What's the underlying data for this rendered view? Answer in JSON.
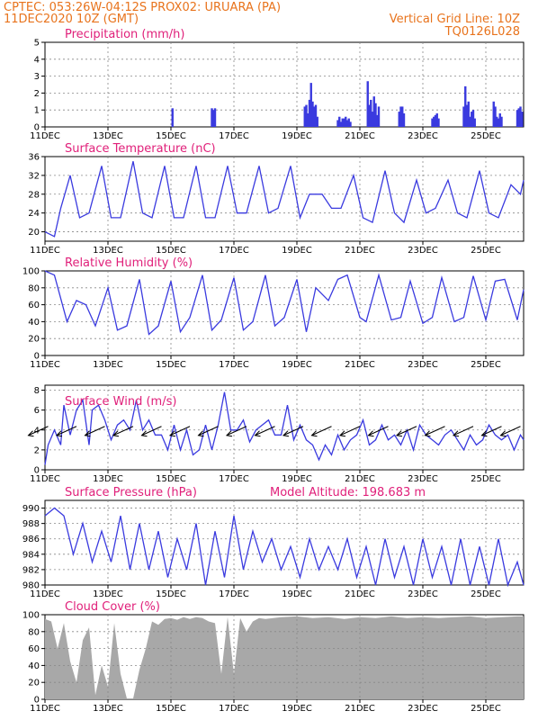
{
  "header": {
    "line1": "CPTEC:   053:26W-04:12S   PROX02: URUARA (PA)",
    "line2": "11DEC2020 10Z (GMT)",
    "grid_note": "Vertical Grid Line: 10Z",
    "code": "TQ0126L028"
  },
  "x_axis": {
    "tick_labels": [
      "11DEC",
      "13DEC",
      "15DEC",
      "17DEC",
      "19DEC",
      "21DEC",
      "23DEC",
      "25DEC"
    ],
    "tick_days": [
      0,
      2,
      4,
      6,
      8,
      10,
      12,
      14
    ],
    "range_days": [
      0,
      15.2
    ]
  },
  "colors": {
    "series": "#3a3adf",
    "cloud": "#a8a8a8",
    "header": "#e8731c",
    "title": "#e0207a"
  },
  "chart_data": [
    {
      "type": "bar",
      "title": "Precipitation  (mm/h)",
      "ylim": [
        0,
        5
      ],
      "yticks": [
        0,
        1,
        2,
        3,
        4,
        5
      ],
      "x_days": [
        4.05,
        5.3,
        5.35,
        5.4,
        8.25,
        8.3,
        8.35,
        8.4,
        8.45,
        8.5,
        8.55,
        8.6,
        8.65,
        9.3,
        9.35,
        9.4,
        9.45,
        9.5,
        9.55,
        9.6,
        9.65,
        9.7,
        10.25,
        10.3,
        10.35,
        10.4,
        10.45,
        10.5,
        10.55,
        10.6,
        11.25,
        11.3,
        11.35,
        11.4,
        12.3,
        12.35,
        12.4,
        12.45,
        12.5,
        13.3,
        13.35,
        13.4,
        13.45,
        13.5,
        13.55,
        13.6,
        13.65,
        14.25,
        14.3,
        14.35,
        14.4,
        14.45,
        14.5,
        15.0,
        15.05,
        15.1,
        15.15
      ],
      "values": [
        1.1,
        1.1,
        1.0,
        1.1,
        1.2,
        1.3,
        0.8,
        1.6,
        2.6,
        1.5,
        1.2,
        1.3,
        0.6,
        0.4,
        0.6,
        0.3,
        0.5,
        0.5,
        0.6,
        0.4,
        0.5,
        0.3,
        2.7,
        1.3,
        1.6,
        0.9,
        1.8,
        1.4,
        0.7,
        1.2,
        0.9,
        1.2,
        1.2,
        0.8,
        0.5,
        0.6,
        0.7,
        0.8,
        0.5,
        1.2,
        2.4,
        1.3,
        1.5,
        0.6,
        0.9,
        1.0,
        0.5,
        1.5,
        1.2,
        0.6,
        0.5,
        0.8,
        0.6,
        1.0,
        1.1,
        1.2,
        0.9
      ]
    },
    {
      "type": "line",
      "title": "Surface Temperature (nC)",
      "ylim": [
        18,
        36
      ],
      "yticks": [
        20,
        24,
        28,
        32,
        36
      ],
      "series": [
        {
          "x_days": [
            0,
            0.3,
            0.5,
            0.8,
            1.1,
            1.4,
            1.8,
            2.1,
            2.4,
            2.8,
            3.1,
            3.4,
            3.8,
            4.1,
            4.4,
            4.8,
            5.1,
            5.4,
            5.8,
            6.1,
            6.4,
            6.8,
            7.1,
            7.4,
            7.8,
            8.1,
            8.4,
            8.8,
            9.1,
            9.4,
            9.8,
            10.1,
            10.4,
            10.8,
            11.1,
            11.4,
            11.8,
            12.1,
            12.4,
            12.8,
            13.1,
            13.4,
            13.8,
            14.1,
            14.4,
            14.8,
            15.1,
            15.2
          ],
          "values": [
            20,
            19,
            25,
            32,
            23,
            24,
            34,
            23,
            23,
            35,
            24,
            23,
            34,
            23,
            23,
            34,
            23,
            23,
            34,
            24,
            24,
            34,
            24,
            25,
            34,
            23,
            28,
            28,
            25,
            25,
            32,
            23,
            22,
            33,
            24,
            22,
            31,
            24,
            25,
            31,
            24,
            23,
            33,
            24,
            23,
            30,
            28,
            31
          ]
        }
      ]
    },
    {
      "type": "line",
      "title": "Relative Humidity  (%)",
      "ylim": [
        0,
        100
      ],
      "yticks": [
        0,
        20,
        40,
        60,
        80,
        100
      ],
      "series": [
        {
          "x_days": [
            0,
            0.3,
            0.7,
            1.0,
            1.3,
            1.6,
            2.0,
            2.3,
            2.6,
            3.0,
            3.3,
            3.6,
            4.0,
            4.3,
            4.6,
            5.0,
            5.3,
            5.6,
            6.0,
            6.3,
            6.6,
            7.0,
            7.3,
            7.6,
            8.0,
            8.3,
            8.6,
            9.0,
            9.3,
            9.6,
            10.0,
            10.2,
            10.6,
            11.0,
            11.3,
            11.6,
            12.0,
            12.3,
            12.6,
            13.0,
            13.3,
            13.6,
            14.0,
            14.3,
            14.6,
            15.0,
            15.2
          ],
          "values": [
            100,
            95,
            40,
            65,
            60,
            35,
            80,
            30,
            35,
            90,
            25,
            35,
            88,
            28,
            45,
            95,
            30,
            42,
            92,
            30,
            40,
            95,
            35,
            45,
            90,
            28,
            80,
            65,
            90,
            95,
            45,
            40,
            95,
            42,
            45,
            88,
            38,
            45,
            92,
            40,
            45,
            94,
            42,
            88,
            90,
            42,
            78
          ]
        }
      ]
    },
    {
      "type": "line",
      "title": "Surface Wind  (m/s)",
      "ylim": [
        0,
        8.5
      ],
      "yticks": [
        0,
        2,
        4,
        6,
        8
      ],
      "series": [
        {
          "x_days": [
            0,
            0.1,
            0.3,
            0.5,
            0.6,
            0.8,
            1.0,
            1.2,
            1.4,
            1.5,
            1.7,
            1.9,
            2.1,
            2.3,
            2.5,
            2.7,
            2.9,
            3.1,
            3.3,
            3.5,
            3.7,
            3.9,
            4.1,
            4.3,
            4.5,
            4.7,
            4.9,
            5.1,
            5.3,
            5.5,
            5.7,
            5.9,
            6.1,
            6.3,
            6.5,
            6.7,
            6.9,
            7.1,
            7.3,
            7.5,
            7.7,
            7.9,
            8.1,
            8.3,
            8.5,
            8.7,
            8.9,
            9.1,
            9.3,
            9.5,
            9.7,
            9.9,
            10.1,
            10.3,
            10.5,
            10.7,
            10.9,
            11.1,
            11.3,
            11.5,
            11.7,
            11.9,
            12.1,
            12.3,
            12.5,
            12.7,
            12.9,
            13.1,
            13.3,
            13.5,
            13.7,
            13.9,
            14.1,
            14.3,
            14.5,
            14.7,
            14.9,
            15.1,
            15.2
          ],
          "values": [
            0.5,
            2.5,
            4.0,
            2.5,
            6.5,
            3.5,
            6.0,
            7.0,
            2.5,
            6.0,
            6.5,
            5.0,
            3.0,
            4.5,
            5.0,
            4.0,
            7.0,
            4.0,
            5.0,
            3.5,
            3.5,
            2.0,
            4.5,
            2.0,
            4.0,
            1.5,
            2.0,
            4.5,
            2.0,
            4.5,
            7.8,
            4.0,
            4.0,
            5.0,
            2.8,
            4.0,
            4.5,
            5.0,
            3.5,
            3.5,
            6.5,
            3.0,
            4.5,
            3.0,
            2.5,
            1.0,
            2.5,
            1.5,
            3.5,
            2.0,
            3.0,
            3.5,
            5.0,
            2.5,
            3.0,
            4.5,
            3.0,
            3.5,
            2.5,
            4.0,
            2.0,
            4.5,
            3.5,
            3.0,
            2.5,
            3.5,
            4.0,
            3.0,
            2.0,
            3.5,
            2.5,
            3.0,
            4.5,
            3.5,
            3.0,
            3.5,
            2.0,
            3.5,
            3.0
          ]
        }
      ],
      "wind_arrows_x_days": [
        0.1,
        1.0,
        1.9,
        2.8,
        3.7,
        4.6,
        5.5,
        6.4,
        7.3,
        8.2,
        9.1,
        10.0,
        10.9,
        11.8,
        12.7,
        13.6,
        14.5,
        15.1
      ]
    },
    {
      "type": "line",
      "title": "Surface Pressure (hPa)",
      "subtitle": "Model Altitude:  198.683  m",
      "ylim": [
        980,
        991
      ],
      "yticks": [
        980,
        982,
        984,
        986,
        988,
        990
      ],
      "series": [
        {
          "x_days": [
            0,
            0.3,
            0.6,
            0.9,
            1.2,
            1.5,
            1.8,
            2.1,
            2.4,
            2.7,
            3.0,
            3.3,
            3.6,
            3.9,
            4.2,
            4.5,
            4.8,
            5.1,
            5.4,
            5.7,
            6.0,
            6.3,
            6.6,
            6.9,
            7.2,
            7.5,
            7.8,
            8.1,
            8.4,
            8.7,
            9.0,
            9.3,
            9.6,
            9.9,
            10.2,
            10.5,
            10.8,
            11.1,
            11.4,
            11.7,
            12.0,
            12.3,
            12.6,
            12.9,
            13.2,
            13.5,
            13.8,
            14.1,
            14.4,
            14.7,
            15.0,
            15.2
          ],
          "values": [
            989,
            990,
            989,
            984,
            988,
            983,
            987,
            983,
            989,
            982,
            988,
            982,
            987,
            981,
            986,
            982,
            988,
            980,
            987,
            981,
            989,
            982,
            987,
            983,
            986,
            982,
            985,
            981,
            986,
            982,
            985,
            982,
            986,
            981,
            985,
            980,
            986,
            981,
            985,
            980,
            986,
            981,
            985,
            980,
            986,
            980,
            985,
            980,
            986,
            980,
            983,
            979
          ]
        }
      ]
    },
    {
      "type": "area",
      "title": "Cloud Cover  (%)",
      "ylim": [
        0,
        100
      ],
      "yticks": [
        0,
        20,
        40,
        60,
        80,
        100
      ],
      "series": [
        {
          "x_days": [
            0,
            0.2,
            0.4,
            0.6,
            0.8,
            1.0,
            1.2,
            1.4,
            1.6,
            1.8,
            2.0,
            2.2,
            2.4,
            2.6,
            2.8,
            3.0,
            3.2,
            3.4,
            3.6,
            3.8,
            4.0,
            4.2,
            4.4,
            4.6,
            4.8,
            5.0,
            5.2,
            5.4,
            5.6,
            5.8,
            6.0,
            6.2,
            6.4,
            6.6,
            6.8,
            7.0,
            7.5,
            8.0,
            8.5,
            9.0,
            9.5,
            10.0,
            10.5,
            11.0,
            11.5,
            12.0,
            12.5,
            13.0,
            13.5,
            14.0,
            14.5,
            15.0,
            15.2
          ],
          "values": [
            95,
            92,
            60,
            90,
            45,
            20,
            70,
            85,
            5,
            40,
            15,
            90,
            30,
            1,
            1,
            35,
            60,
            92,
            88,
            95,
            96,
            94,
            97,
            95,
            97,
            96,
            92,
            90,
            30,
            97,
            30,
            96,
            80,
            92,
            96,
            95,
            97,
            98,
            96,
            97,
            95,
            97,
            96,
            98,
            96,
            97,
            96,
            97,
            98,
            96,
            97,
            98,
            98
          ]
        }
      ]
    }
  ]
}
